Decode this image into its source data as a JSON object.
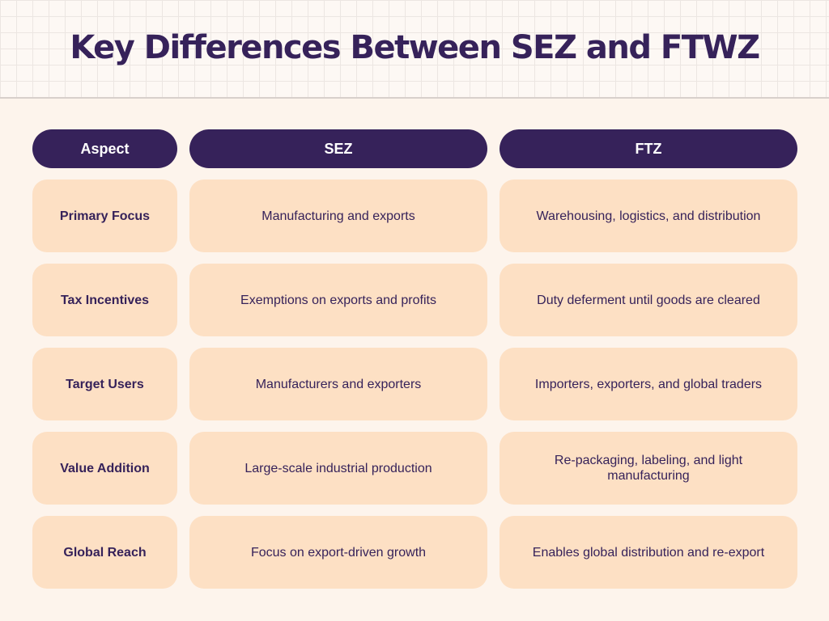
{
  "title": "Key Differences Between SEZ and FTWZ",
  "colors": {
    "heading": "#36225a",
    "cell": "#fde0c4",
    "background": "#fdf4ec"
  },
  "table": {
    "headers": [
      "Aspect",
      "SEZ",
      "FTZ"
    ],
    "rows": [
      {
        "aspect": "Primary Focus",
        "sez": "Manufacturing and exports",
        "ftz": "Warehousing, logistics, and distribution"
      },
      {
        "aspect": "Tax Incentives",
        "sez": "Exemptions on exports and profits",
        "ftz": "Duty deferment until goods are cleared"
      },
      {
        "aspect": "Target Users",
        "sez": "Manufacturers and exporters",
        "ftz": "Importers, exporters, and global traders"
      },
      {
        "aspect": "Value Addition",
        "sez": "Large-scale industrial production",
        "ftz": "Re-packaging, labeling, and light manufacturing"
      },
      {
        "aspect": "Global Reach",
        "sez": "Focus on export-driven growth",
        "ftz": "Enables global distribution and re-export"
      }
    ]
  }
}
